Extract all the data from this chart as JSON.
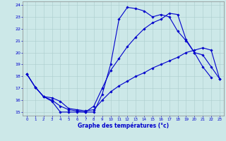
{
  "xlabel": "Graphe des températures (°c)",
  "bg_color": "#cce8e8",
  "line_color": "#0000cc",
  "grid_color": "#aacccc",
  "xlim": [
    -0.5,
    23.5
  ],
  "ylim": [
    14.7,
    24.3
  ],
  "yticks": [
    15,
    16,
    17,
    18,
    19,
    20,
    21,
    22,
    23,
    24
  ],
  "xticks": [
    0,
    1,
    2,
    3,
    4,
    5,
    6,
    7,
    8,
    9,
    10,
    11,
    12,
    13,
    14,
    15,
    16,
    17,
    18,
    19,
    20,
    21,
    22,
    23
  ],
  "series": {
    "line1_x": [
      0,
      1,
      2,
      3,
      4,
      5,
      6,
      7,
      8,
      9,
      10,
      11,
      12,
      13,
      14,
      15,
      16,
      17,
      18,
      19,
      20,
      21,
      22,
      23
    ],
    "line1_y": [
      18.2,
      17.1,
      16.3,
      15.9,
      15.0,
      15.0,
      15.0,
      15.0,
      15.0,
      16.5,
      19.0,
      22.8,
      23.8,
      23.7,
      23.5,
      23.0,
      23.2,
      23.0,
      21.8,
      21.0,
      20.0,
      18.8,
      17.9,
      null
    ],
    "line2_x": [
      0,
      1,
      2,
      3,
      4,
      5,
      6,
      7,
      8,
      9,
      10,
      11,
      12,
      13,
      14,
      15,
      16,
      17,
      18,
      19,
      20,
      21,
      22,
      23
    ],
    "line2_y": [
      18.2,
      17.1,
      16.3,
      16.2,
      15.9,
      15.3,
      15.2,
      15.1,
      15.2,
      16.0,
      16.7,
      17.2,
      17.6,
      18.0,
      18.3,
      18.7,
      19.0,
      19.3,
      19.6,
      20.0,
      20.2,
      20.4,
      20.2,
      17.8
    ],
    "line3_x": [
      0,
      1,
      2,
      3,
      4,
      5,
      6,
      7,
      8,
      9,
      10,
      11,
      12,
      13,
      14,
      15,
      16,
      17,
      18,
      19,
      20,
      21,
      22,
      23
    ],
    "line3_y": [
      18.2,
      17.1,
      16.3,
      16.0,
      15.5,
      15.2,
      15.1,
      15.0,
      15.5,
      17.0,
      18.5,
      19.5,
      20.5,
      21.3,
      22.0,
      22.5,
      22.8,
      23.3,
      23.2,
      21.1,
      20.0,
      19.8,
      18.8,
      17.8
    ]
  }
}
